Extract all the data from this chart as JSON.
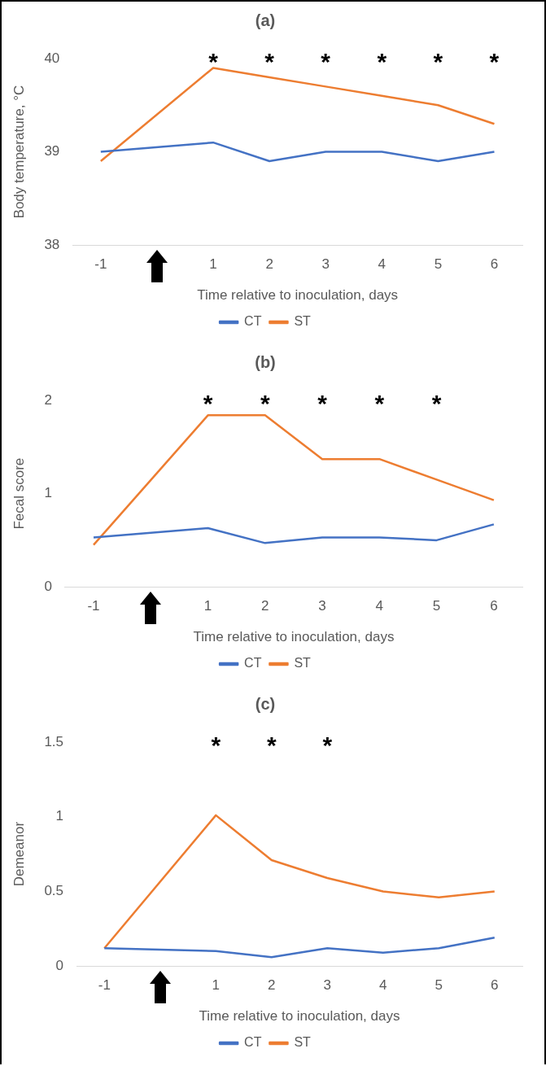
{
  "chart_data": [
    {
      "type": "line",
      "title": "(a)",
      "xlabel": "Time relative to inoculation, days",
      "ylabel": "Body temperature, °C",
      "categories": [
        "-1",
        null,
        "1",
        "2",
        "3",
        "4",
        "5",
        "6"
      ],
      "series": [
        {
          "name": "CT",
          "color": "#4472c4",
          "values": [
            39.0,
            null,
            39.1,
            38.9,
            39.0,
            39.0,
            38.9,
            39.0
          ]
        },
        {
          "name": "ST",
          "color": "#ed7d31",
          "values": [
            38.9,
            null,
            39.9,
            39.8,
            39.7,
            39.6,
            39.5,
            39.3
          ]
        }
      ],
      "ylim": [
        38,
        40
      ],
      "yticks": [
        38,
        39,
        40
      ],
      "grid": false,
      "legend": "bottom",
      "annotations": [
        "*",
        "*",
        "*",
        "*",
        "*",
        "*"
      ]
    },
    {
      "type": "line",
      "title": "(b)",
      "xlabel": "Time relative to inoculation, days",
      "ylabel": "Fecal score",
      "categories": [
        "-1",
        null,
        "1",
        "2",
        "3",
        "4",
        "5",
        "6"
      ],
      "series": [
        {
          "name": "CT",
          "color": "#4472c4",
          "values": [
            0.53,
            null,
            0.63,
            0.47,
            0.53,
            0.53,
            0.5,
            0.67
          ]
        },
        {
          "name": "ST",
          "color": "#ed7d31",
          "values": [
            0.45,
            null,
            1.84,
            1.84,
            1.37,
            1.37,
            1.15,
            0.93
          ]
        }
      ],
      "ylim": [
        0,
        2
      ],
      "yticks": [
        0,
        1,
        2
      ],
      "grid": false,
      "legend": "bottom",
      "annotations": [
        "*",
        "*",
        "*",
        "*",
        "*"
      ]
    },
    {
      "type": "line",
      "title": "(c)",
      "xlabel": "Time relative to inoculation, days",
      "ylabel": "Demeanor",
      "categories": [
        "-1",
        null,
        "1",
        "2",
        "3",
        "4",
        "5",
        "6"
      ],
      "series": [
        {
          "name": "CT",
          "color": "#4472c4",
          "values": [
            0.12,
            null,
            0.1,
            0.06,
            0.12,
            0.09,
            0.12,
            0.19
          ]
        },
        {
          "name": "ST",
          "color": "#ed7d31",
          "values": [
            0.12,
            null,
            1.01,
            0.71,
            0.59,
            0.5,
            0.46,
            0.5
          ]
        }
      ],
      "ylim": [
        0,
        1.5
      ],
      "yticks": [
        0,
        0.5,
        1,
        1.5
      ],
      "grid": false,
      "legend": "bottom",
      "annotations": [
        "*",
        "*",
        "*"
      ]
    }
  ]
}
